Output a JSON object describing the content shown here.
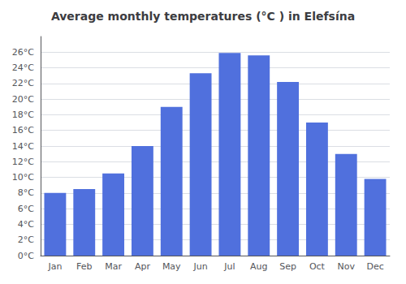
{
  "chart_data": {
    "type": "bar",
    "title": "Average monthly temperatures (°C ) in Elefsína",
    "categories": [
      "Jan",
      "Feb",
      "Mar",
      "Apr",
      "May",
      "Jun",
      "Jul",
      "Aug",
      "Sep",
      "Oct",
      "Nov",
      "Dec"
    ],
    "values": [
      8.0,
      8.5,
      10.5,
      14.0,
      19.0,
      23.3,
      25.9,
      25.6,
      22.2,
      17.0,
      13.0,
      9.8
    ],
    "ylim": [
      0,
      28
    ],
    "yticks": [
      {
        "value": 0,
        "label": "0°C"
      },
      {
        "value": 2,
        "label": "2°C"
      },
      {
        "value": 4,
        "label": "4°C"
      },
      {
        "value": 6,
        "label": "6°C"
      },
      {
        "value": 8,
        "label": "8°C"
      },
      {
        "value": 10,
        "label": "10°C"
      },
      {
        "value": 12,
        "label": "12°C"
      },
      {
        "value": 14,
        "label": "14°C"
      },
      {
        "value": 16,
        "label": "16°C"
      },
      {
        "value": 18,
        "label": "18°C"
      },
      {
        "value": 20,
        "label": "20°C"
      },
      {
        "value": 22,
        "label": "22°C"
      },
      {
        "value": 24,
        "label": "24°C"
      },
      {
        "value": 26,
        "label": "26°C"
      }
    ],
    "grid": true
  }
}
